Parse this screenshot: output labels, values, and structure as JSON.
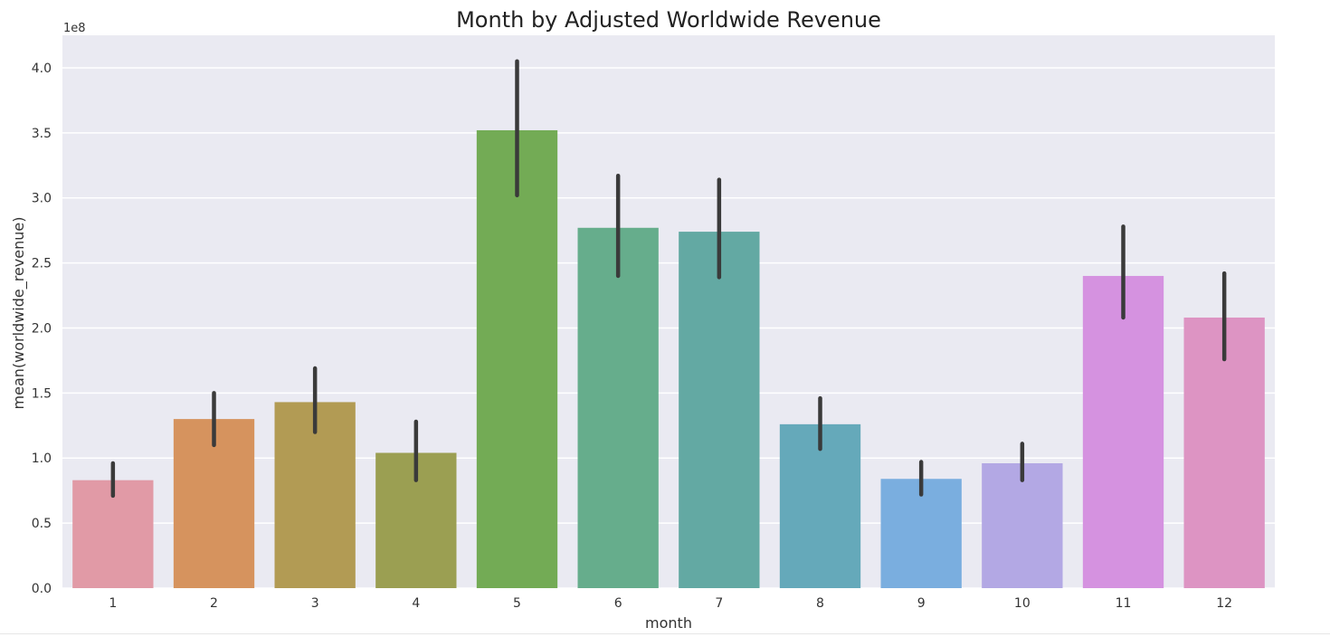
{
  "chart_data": {
    "type": "bar",
    "title": "Month by Adjusted Worldwide Revenue",
    "xlabel": "month",
    "ylabel": "mean(worldwide_revenue)",
    "y_offset_text": "1e8",
    "categories": [
      "1",
      "2",
      "3",
      "4",
      "5",
      "6",
      "7",
      "8",
      "9",
      "10",
      "11",
      "12"
    ],
    "values": [
      0.83,
      1.3,
      1.43,
      1.04,
      3.52,
      2.77,
      2.74,
      1.26,
      0.84,
      0.96,
      2.4,
      2.08
    ],
    "error_low": [
      0.71,
      1.1,
      1.2,
      0.83,
      3.02,
      2.4,
      2.39,
      1.07,
      0.72,
      0.83,
      2.08,
      1.76
    ],
    "error_high": [
      0.96,
      1.5,
      1.69,
      1.28,
      4.05,
      3.17,
      3.14,
      1.46,
      0.97,
      1.11,
      2.78,
      2.42
    ],
    "y_ticks": [
      "0.0",
      "0.5",
      "1.0",
      "1.5",
      "2.0",
      "2.5",
      "3.0",
      "3.5",
      "4.0"
    ],
    "y_tick_values": [
      0,
      0.5,
      1.0,
      1.5,
      2.0,
      2.5,
      3.0,
      3.5,
      4.0
    ],
    "ylim": [
      0,
      4.25
    ],
    "y_scale": 100000000,
    "grid": true,
    "colors": [
      "#e19aa6",
      "#d6935e",
      "#b29b54",
      "#9b9f52",
      "#73ab55",
      "#66ad8c",
      "#63a9a3",
      "#65a9ba",
      "#7aaedf",
      "#b3a8e4",
      "#d592e0",
      "#dd94c3"
    ],
    "errorbar_color": "#3a3a3a",
    "plot_background": "#eaeaf2",
    "grid_color": "#ffffff"
  }
}
